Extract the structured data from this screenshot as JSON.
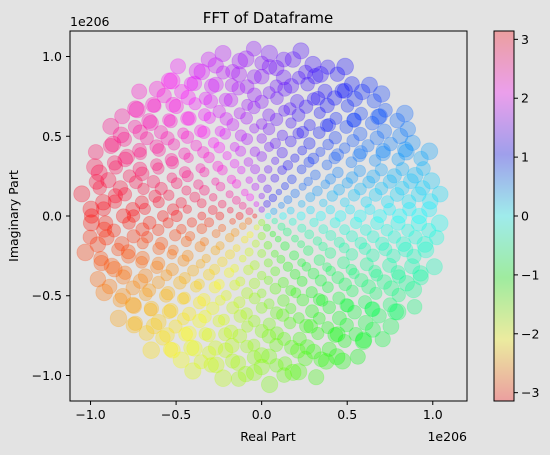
{
  "chart_data": {
    "type": "scatter",
    "title": "FFT of Dataframe",
    "xlabel": "Real Part",
    "ylabel": "Imaginary Part",
    "x_offset_text": "1e206",
    "y_offset_text": "1e206",
    "xlim": [
      -1.12,
      1.2
    ],
    "ylim": [
      -1.16,
      1.16
    ],
    "xticks": [
      -1.0,
      -0.5,
      0.0,
      0.5,
      1.0
    ],
    "xtick_labels": [
      "−1.0",
      "−0.5",
      "0.0",
      "0.5",
      "1.0"
    ],
    "yticks": [
      -1.0,
      -0.5,
      0.0,
      0.5,
      1.0
    ],
    "ytick_labels": [
      "−1.0",
      "−0.5",
      "0.0",
      "0.5",
      "1.0"
    ],
    "grid": false,
    "colormap": "hsv",
    "point_alpha": 0.3,
    "color_encodes": "angle (radians)",
    "size_encodes": "magnitude",
    "colorbar": {
      "range": [
        -3.14159,
        3.14159
      ],
      "ticks": [
        -3,
        -2,
        -1,
        0,
        1,
        2,
        3
      ],
      "tick_labels": [
        "−3",
        "−2",
        "−1",
        "0",
        "1",
        "2",
        "3"
      ]
    },
    "point_distribution": {
      "description": "points arranged on concentric polygonal rings filling the unit disk; magnitude up to ~1.05",
      "rings": [
        {
          "radius": 0.04,
          "count": 4
        },
        {
          "radius": 0.08,
          "count": 8
        },
        {
          "radius": 0.13,
          "count": 12
        },
        {
          "radius": 0.18,
          "count": 16
        },
        {
          "radius": 0.24,
          "count": 20
        },
        {
          "radius": 0.3,
          "count": 24
        },
        {
          "radius": 0.36,
          "count": 28
        },
        {
          "radius": 0.42,
          "count": 32
        },
        {
          "radius": 0.48,
          "count": 36
        },
        {
          "radius": 0.54,
          "count": 40
        },
        {
          "radius": 0.6,
          "count": 44
        },
        {
          "radius": 0.66,
          "count": 48
        },
        {
          "radius": 0.72,
          "count": 52
        },
        {
          "radius": 0.78,
          "count": 56
        },
        {
          "radius": 0.84,
          "count": 60
        },
        {
          "radius": 0.9,
          "count": 64
        },
        {
          "radius": 0.96,
          "count": 68
        },
        {
          "radius": 1.02,
          "count": 72
        }
      ]
    }
  }
}
